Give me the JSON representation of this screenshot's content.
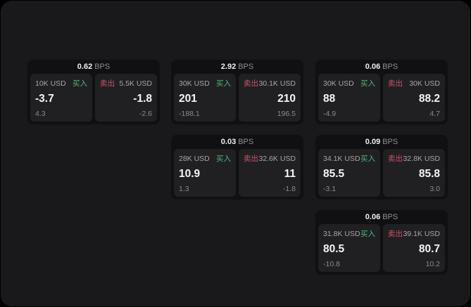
{
  "colors": {
    "buy_green": "#4cba7d",
    "sell_red": "#d35064",
    "panel_bg": "#19191b",
    "card_bg": "#101012",
    "subpanel_bg": "#202023"
  },
  "labels": {
    "bps_unit": "BPS",
    "buy": "买入",
    "sell": "卖出"
  },
  "cards": [
    {
      "col": 1,
      "row": 1,
      "bps": "0.62",
      "buy": {
        "notional": "10K USD",
        "price": "-3.7",
        "delta": "4.3"
      },
      "sell": {
        "notional": "5.5K USD",
        "price": "-1.8",
        "delta": "-2.6"
      }
    },
    {
      "col": 2,
      "row": 1,
      "bps": "2.92",
      "buy": {
        "notional": "30K USD",
        "price": "201",
        "delta": "-188.1"
      },
      "sell": {
        "notional": "30.1K USD",
        "price": "210",
        "delta": "196.5"
      }
    },
    {
      "col": 3,
      "row": 1,
      "bps": "0.06",
      "buy": {
        "notional": "30K USD",
        "price": "88",
        "delta": "-4.9"
      },
      "sell": {
        "notional": "30K USD",
        "price": "88.2",
        "delta": "4.7"
      }
    },
    {
      "col": 2,
      "row": 2,
      "bps": "0.03",
      "buy": {
        "notional": "28K USD",
        "price": "10.9",
        "delta": "1.3"
      },
      "sell": {
        "notional": "32.6K USD",
        "price": "11",
        "delta": "-1.8"
      }
    },
    {
      "col": 3,
      "row": 2,
      "bps": "0.09",
      "buy": {
        "notional": "34.1K USD",
        "price": "85.5",
        "delta": "-3.1"
      },
      "sell": {
        "notional": "32.8K USD",
        "price": "85.8",
        "delta": "3.0"
      }
    },
    {
      "col": 3,
      "row": 3,
      "bps": "0.06",
      "buy": {
        "notional": "31.8K USD",
        "price": "80.5",
        "delta": "-10.8"
      },
      "sell": {
        "notional": "39.1K USD",
        "price": "80.7",
        "delta": "10.2"
      }
    }
  ]
}
